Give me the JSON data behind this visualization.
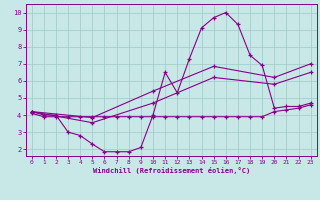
{
  "xlabel": "Windchill (Refroidissement éolien,°C)",
  "background_color": "#c8e8e8",
  "grid_color": "#a0c8c8",
  "line_color": "#880088",
  "xlim": [
    -0.5,
    23.5
  ],
  "ylim": [
    1.6,
    10.5
  ],
  "xticks": [
    0,
    1,
    2,
    3,
    4,
    5,
    6,
    7,
    8,
    9,
    10,
    11,
    12,
    13,
    14,
    15,
    16,
    17,
    18,
    19,
    20,
    21,
    22,
    23
  ],
  "yticks": [
    2,
    3,
    4,
    5,
    6,
    7,
    8,
    9,
    10
  ],
  "series": [
    {
      "x": [
        0,
        1,
        2,
        3,
        4,
        5,
        6,
        7,
        8,
        9,
        10,
        11,
        12,
        13,
        14,
        15,
        16,
        17,
        18,
        19,
        20,
        21,
        22,
        23
      ],
      "y": [
        4.2,
        4.0,
        4.0,
        3.0,
        2.8,
        2.3,
        1.85,
        1.85,
        1.85,
        2.1,
        4.0,
        6.5,
        5.3,
        7.3,
        9.1,
        9.7,
        10.0,
        9.3,
        7.5,
        6.9,
        4.4,
        4.5,
        4.5,
        4.7
      ]
    },
    {
      "x": [
        0,
        1,
        2,
        3,
        4,
        5,
        6,
        7,
        8,
        9,
        10,
        11,
        12,
        13,
        14,
        15,
        16,
        17,
        18,
        19,
        20,
        21,
        22,
        23
      ],
      "y": [
        4.1,
        3.9,
        3.9,
        3.9,
        3.9,
        3.9,
        3.9,
        3.9,
        3.9,
        3.9,
        3.9,
        3.9,
        3.9,
        3.9,
        3.9,
        3.9,
        3.9,
        3.9,
        3.9,
        3.9,
        4.2,
        4.3,
        4.4,
        4.6
      ]
    },
    {
      "x": [
        0,
        5,
        10,
        15,
        20,
        23
      ],
      "y": [
        4.2,
        3.55,
        4.7,
        6.2,
        5.8,
        6.5
      ]
    },
    {
      "x": [
        0,
        5,
        10,
        15,
        20,
        23
      ],
      "y": [
        4.2,
        3.85,
        5.4,
        6.85,
        6.2,
        7.0
      ]
    }
  ]
}
